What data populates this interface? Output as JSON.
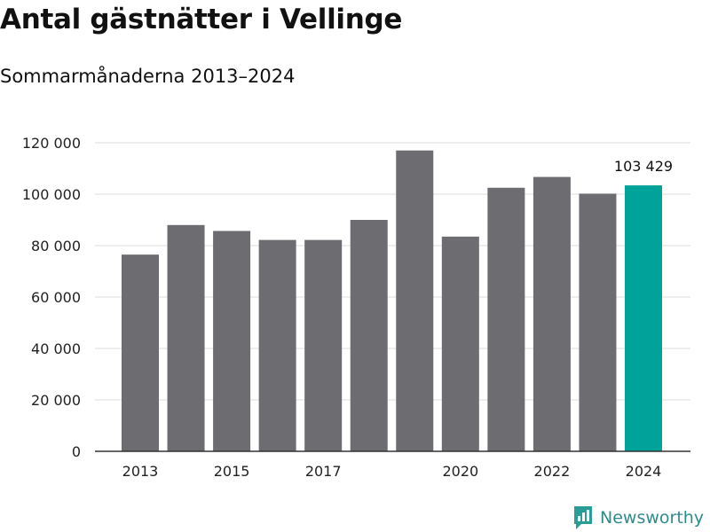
{
  "header": {
    "title": "Antal gästnätter i Vellinge",
    "subtitle": "Sommarmånaderna 2013–2024"
  },
  "brand": {
    "name": "Newsworthy",
    "icon": "newsworthy-logo-icon",
    "color": "#2a9d96"
  },
  "chart_data": {
    "type": "bar",
    "title": "Antal gästnätter i Vellinge",
    "subtitle": "Sommarmånaderna 2013–2024",
    "xlabel": "",
    "ylabel": "",
    "categories": [
      "2013",
      "2014",
      "2015",
      "2016",
      "2017",
      "2018",
      "2019",
      "2020",
      "2021",
      "2022",
      "2023",
      "2024"
    ],
    "x_tick_labels": [
      "2013",
      "2015",
      "2017",
      "2020",
      "2022",
      "2024"
    ],
    "values": [
      76500,
      88000,
      85700,
      82200,
      82200,
      90000,
      117000,
      83500,
      102500,
      106700,
      100200,
      103429
    ],
    "ylim": [
      0,
      120000
    ],
    "y_ticks": [
      0,
      20000,
      40000,
      60000,
      80000,
      100000,
      120000
    ],
    "y_tick_labels": [
      "0",
      "20 000",
      "40 000",
      "60 000",
      "80 000",
      "100 000",
      "120 000"
    ],
    "highlight_index": 11,
    "highlight_label": "103 429",
    "grid": true,
    "colors": {
      "bar": "#6d6c71",
      "highlight": "#00a39a",
      "grid": "#dddddd",
      "axis": "#333333"
    }
  }
}
